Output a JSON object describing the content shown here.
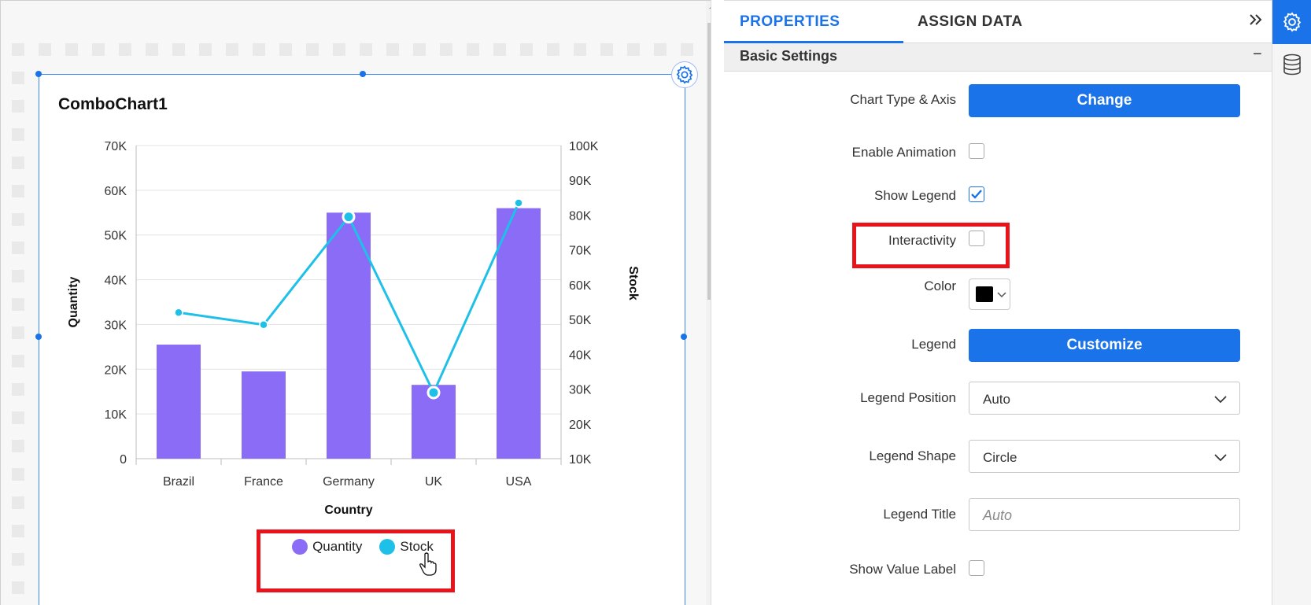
{
  "widget": {
    "title": "ComboChart1",
    "legend": [
      {
        "label": "Quantity",
        "color": "#8b6cf7"
      },
      {
        "label": "Stock",
        "color": "#1fc0e8"
      }
    ]
  },
  "chart_data": {
    "type": "bar",
    "title": "ComboChart1",
    "categories": [
      "Brazil",
      "France",
      "Germany",
      "UK",
      "USA"
    ],
    "xlabel": "Country",
    "ylabel": "Quantity",
    "y2label": "Stock",
    "ylim": [
      0,
      70000
    ],
    "y2lim": [
      10000,
      100000
    ],
    "yticks": [
      "0",
      "10K",
      "20K",
      "30K",
      "40K",
      "50K",
      "60K",
      "70K"
    ],
    "y2ticks": [
      "10K",
      "20K",
      "30K",
      "40K",
      "50K",
      "60K",
      "70K",
      "80K",
      "90K",
      "100K"
    ],
    "legend": "bottom",
    "grid": true,
    "series": [
      {
        "name": "Quantity",
        "type": "bar",
        "axis": "left",
        "color": "#8b6cf7",
        "values": [
          25500,
          19500,
          55000,
          16500,
          56000
        ]
      },
      {
        "name": "Stock",
        "type": "line",
        "axis": "right",
        "color": "#1fc0e8",
        "values": [
          52000,
          48500,
          79500,
          29000,
          83500
        ]
      }
    ]
  },
  "panel": {
    "tabs": {
      "properties": "PROPERTIES",
      "assign_data": "ASSIGN DATA"
    },
    "collapse_icon": "double-chevron-right-icon",
    "section": {
      "title": "Basic Settings",
      "collapse": "−"
    },
    "props": {
      "chart_type_label": "Chart Type & Axis",
      "change_button": "Change",
      "enable_animation_label": "Enable Animation",
      "enable_animation": false,
      "show_legend_label": "Show Legend",
      "show_legend": true,
      "interactivity_label": "Interactivity",
      "interactivity": false,
      "color_label": "Color",
      "color_value": "#000000",
      "legend_label": "Legend",
      "customize_button": "Customize",
      "legend_position_label": "Legend Position",
      "legend_position_value": "Auto",
      "legend_shape_label": "Legend Shape",
      "legend_shape_value": "Circle",
      "legend_title_label": "Legend Title",
      "legend_title_placeholder": "Auto",
      "show_value_label_label": "Show Value Label",
      "show_value_label": false
    }
  },
  "rail": {
    "icons": [
      "gear-icon",
      "database-icon"
    ]
  }
}
